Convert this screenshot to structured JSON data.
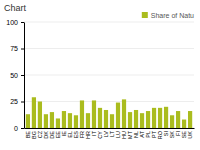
{
  "chart_data": {
    "type": "bar",
    "title": "Chart",
    "categories": [
      "BE",
      "BG",
      "CZ",
      "DK",
      "DE",
      "EE",
      "IE",
      "EL",
      "ES",
      "FR",
      "HR",
      "IT",
      "CY",
      "LV",
      "LT",
      "LU",
      "HU",
      "MT",
      "NL",
      "AT",
      "PL",
      "PT",
      "RO",
      "SI",
      "SK",
      "FI",
      "SE",
      "UK"
    ],
    "series": [
      {
        "name": "Share of Natu",
        "color": "#AABC1E",
        "values": [
          13,
          29,
          25,
          13,
          15,
          9,
          16,
          14,
          12,
          26,
          14,
          26,
          19,
          17,
          13,
          24,
          27,
          15,
          17,
          14,
          16,
          19,
          19,
          20,
          12,
          16,
          8,
          16
        ]
      }
    ],
    "ylim": [
      0,
      100
    ],
    "yticks": [
      0,
      25,
      50,
      75,
      100
    ],
    "grid": true,
    "legend": "top-right"
  }
}
